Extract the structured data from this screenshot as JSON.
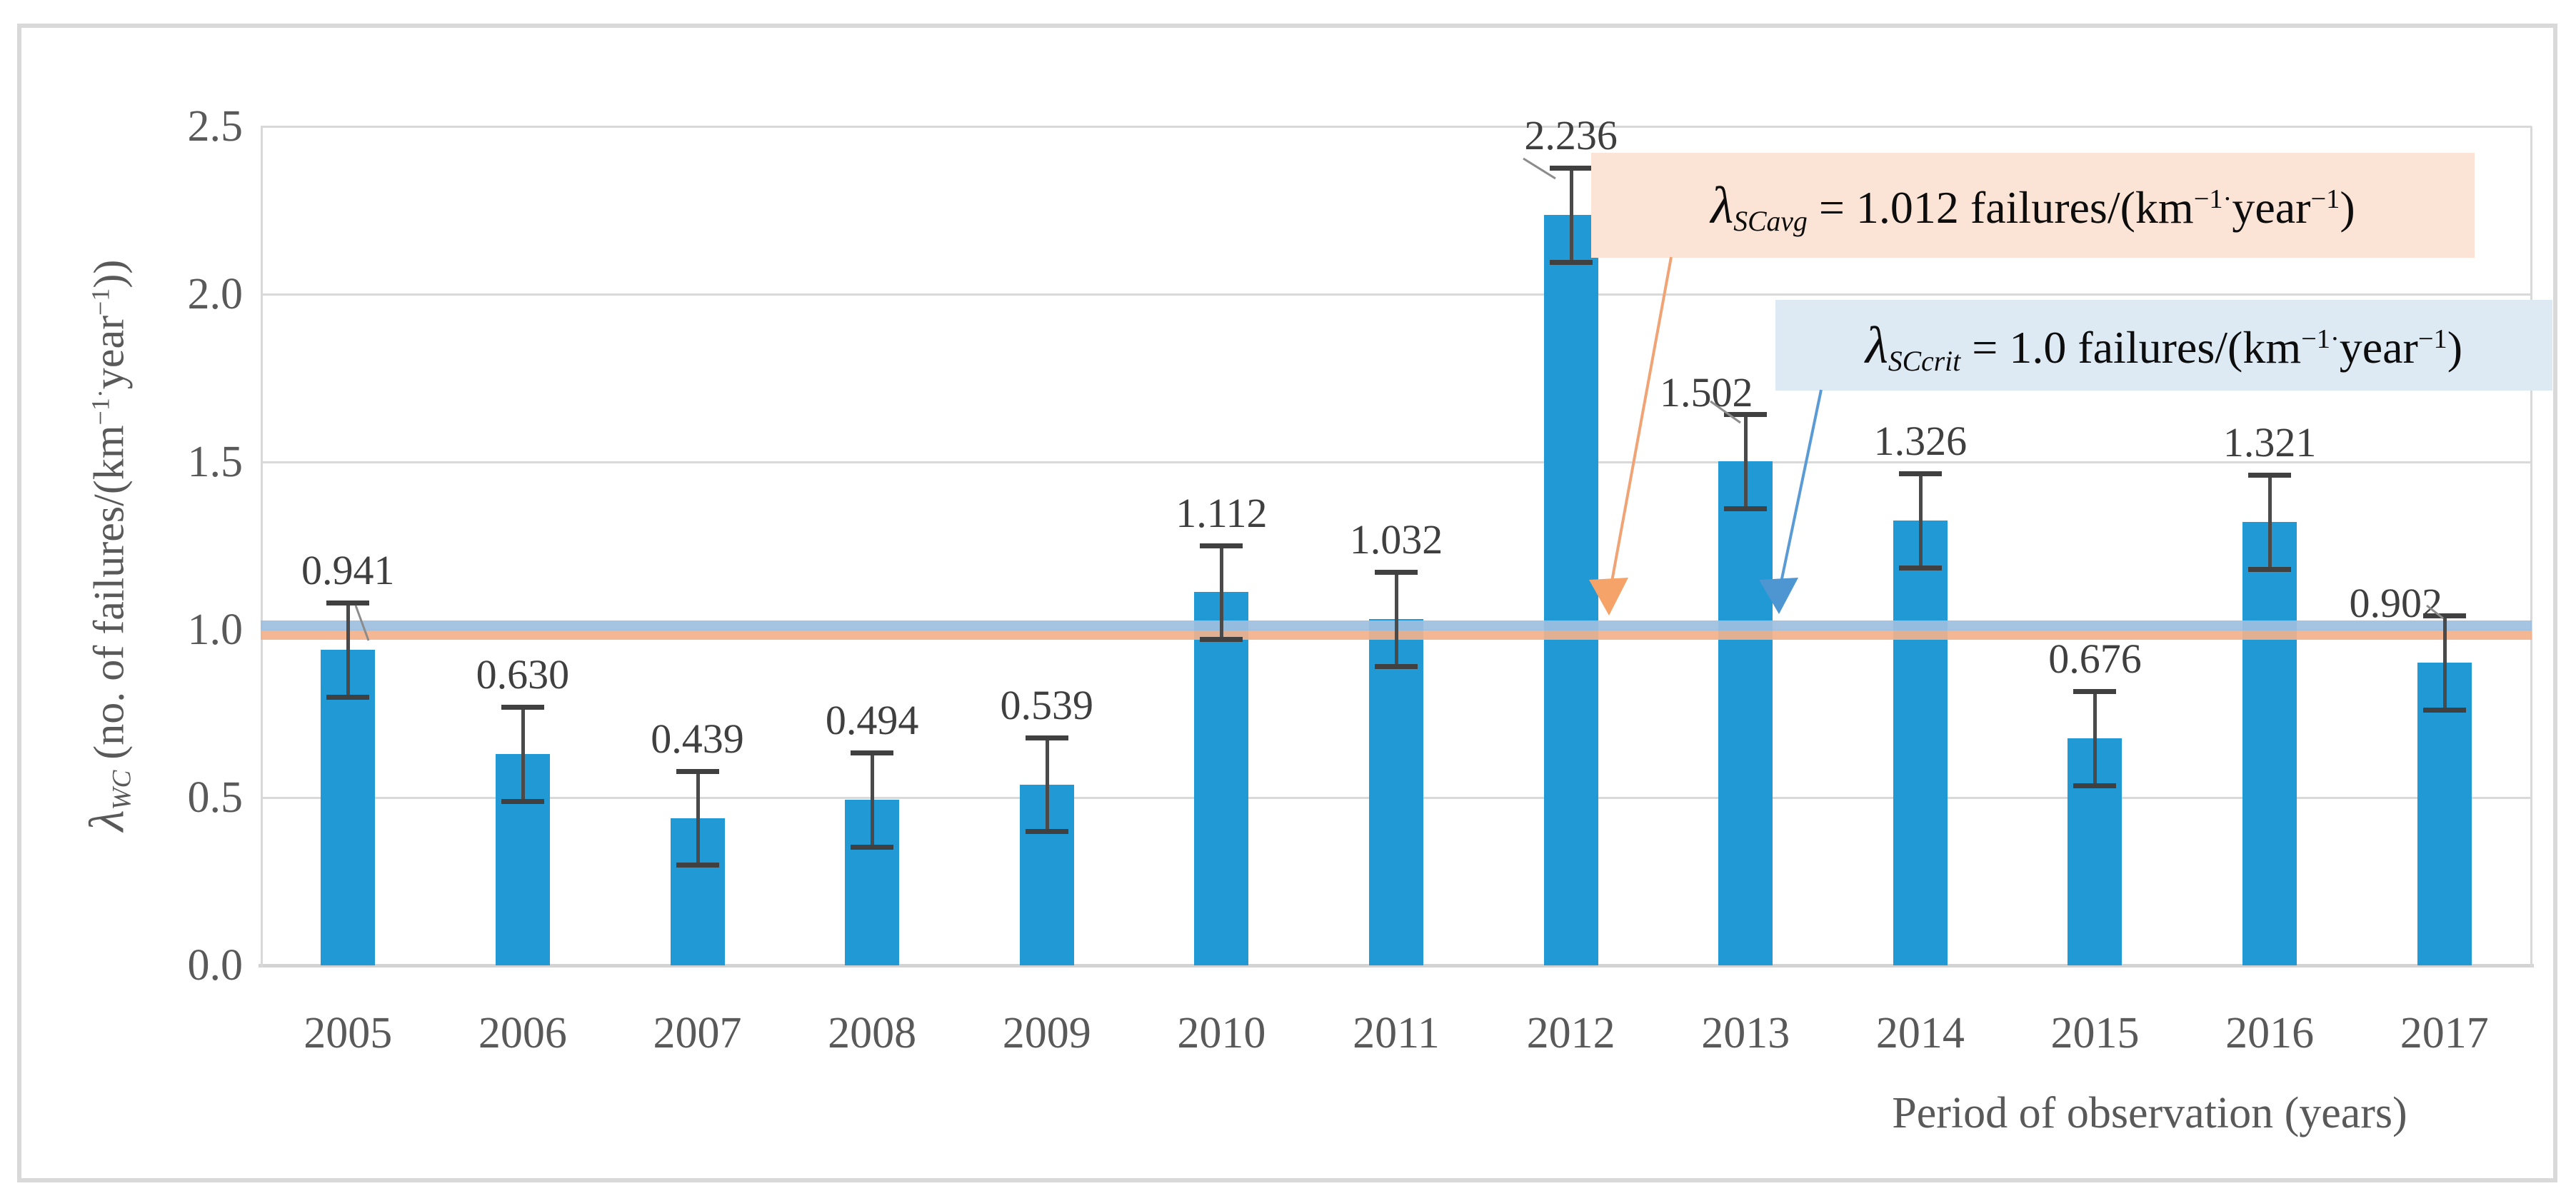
{
  "figure": {
    "background": "#FFFFFF",
    "border_color": "#D9D9D9"
  },
  "chart_data": {
    "type": "bar",
    "title": "",
    "categories": [
      "2005",
      "2006",
      "2007",
      "2008",
      "2009",
      "2010",
      "2011",
      "2012",
      "2013",
      "2014",
      "2015",
      "2016",
      "2017"
    ],
    "values": [
      0.941,
      0.63,
      0.439,
      0.494,
      0.539,
      1.112,
      1.032,
      2.236,
      1.502,
      1.326,
      0.676,
      1.321,
      0.902
    ],
    "value_labels": [
      "0.941",
      "0.630",
      "0.439",
      "0.494",
      "0.539",
      "1.112",
      "1.032",
      "2.236",
      "1.502",
      "1.326",
      "0.676",
      "1.321",
      "0.902"
    ],
    "error_bar_estimate": 0.14,
    "bar_color": "#2099D5",
    "grid": true,
    "gridline_color": "#D9D9D9",
    "ylim": [
      0,
      2.5
    ],
    "ytick_step": 0.5,
    "yticks": [
      "0.0",
      "0.5",
      "1.0",
      "1.5",
      "2.0",
      "2.5"
    ],
    "xlabel": "Period of observation (years)",
    "ylabel_parts": {
      "lambda": "λ",
      "sub": "WC",
      "rest1": " (no. of failures/(km",
      "sup1": "−1·",
      "rest2": "year",
      "sup2": "−1",
      "rest3": "))"
    },
    "reference_lines": [
      {
        "id": "sc-avg",
        "value": 1.012,
        "line_color": "#F2B18B",
        "box_fill": "#FBE3D5",
        "arrow_color": "#F09A6A",
        "label_parts": {
          "lambda": "λ",
          "sub": "SCavg",
          "rest1": " = 1.012 failures/(km",
          "sup1": "−1·",
          "rest2": "year",
          "sup2": "−1",
          "rest3": ")"
        }
      },
      {
        "id": "sc-crit",
        "value": 1.0,
        "line_color": "#9DBFDE",
        "box_fill": "#DDE9F3",
        "arrow_color": "#4D96D2",
        "label_parts": {
          "lambda": "λ",
          "sub": "SCcrit",
          "rest1": " = 1.0 failures/(km",
          "sup1": "−1·",
          "rest2": "year",
          "sup2": "−1",
          "rest3": ")"
        }
      }
    ],
    "text_colors": {
      "ticks": "#595959",
      "data_labels": "#3F3F3F",
      "annotation_text": "#0D0D0D"
    }
  }
}
